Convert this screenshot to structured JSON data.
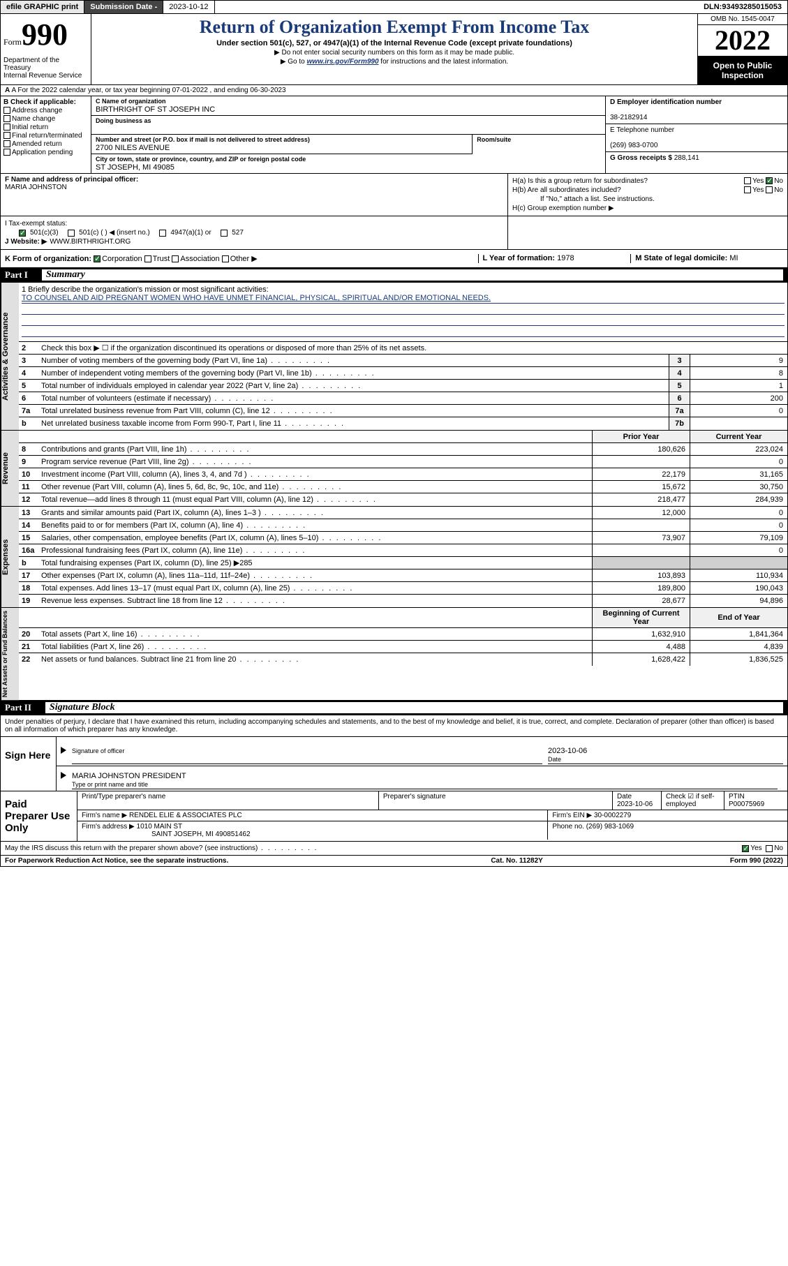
{
  "topbar": {
    "efile": "efile GRAPHIC print",
    "subdate_lbl": "Submission Date - ",
    "subdate_val": "2023-10-12",
    "dln_lbl": "DLN: ",
    "dln_val": "93493285015053"
  },
  "header": {
    "form_prefix": "Form",
    "form_num": "990",
    "dept": "Department of the Treasury\nInternal Revenue Service",
    "title": "Return of Organization Exempt From Income Tax",
    "sub": "Under section 501(c), 527, or 4947(a)(1) of the Internal Revenue Code (except private foundations)",
    "note1": "▶ Do not enter social security numbers on this form as it may be made public.",
    "note2a": "▶ Go to ",
    "note2link": "www.irs.gov/Form990",
    "note2b": " for instructions and the latest information.",
    "omb": "OMB No. 1545-0047",
    "year": "2022",
    "open": "Open to Public Inspection"
  },
  "rowA": "A For the 2022 calendar year, or tax year beginning 07-01-2022    , and ending 06-30-2023",
  "colB": {
    "hdr": "B Check if applicable:",
    "items": [
      "Address change",
      "Name change",
      "Initial return",
      "Final return/terminated",
      "Amended return",
      "Application pending"
    ]
  },
  "colC": {
    "name_lbl": "C Name of organization",
    "name": "BIRTHRIGHT OF ST JOSEPH INC",
    "dba_lbl": "Doing business as",
    "dba": "",
    "street_lbl": "Number and street (or P.O. box if mail is not delivered to street address)",
    "street": "2700 NILES AVENUE",
    "room_lbl": "Room/suite",
    "city_lbl": "City or town, state or province, country, and ZIP or foreign postal code",
    "city": "ST JOSEPH, MI  49085"
  },
  "colDE": {
    "d_lbl": "D Employer identification number",
    "d_val": "38-2182914",
    "e_lbl": "E Telephone number",
    "e_val": "(269) 983-0700",
    "g_lbl": "G Gross receipts $ ",
    "g_val": "288,141"
  },
  "fh": {
    "f_lbl": "F Name and address of principal officer:",
    "f_val": "MARIA JOHNSTON",
    "ha": "H(a)  Is this a group return for subordinates?",
    "hb": "H(b)  Are all subordinates included?",
    "hb_note": "If \"No,\" attach a list. See instructions.",
    "hc": "H(c)  Group exemption number ▶",
    "yes": "Yes",
    "no": "No"
  },
  "ij": {
    "i_lbl": "I    Tax-exempt status:",
    "i_501c3": "501(c)(3)",
    "i_501c": "501(c) (  ) ◀ (insert no.)",
    "i_4947": "4947(a)(1) or",
    "i_527": "527",
    "j_lbl": "J    Website: ▶",
    "j_val": "WWW.BIRTHRIGHT.ORG"
  },
  "klm": {
    "k_lbl": "K Form of organization:",
    "k_corp": "Corporation",
    "k_trust": "Trust",
    "k_assoc": "Association",
    "k_other": "Other ▶",
    "l_lbl": "L Year of formation: ",
    "l_val": "1978",
    "m_lbl": "M State of legal domicile: ",
    "m_val": "MI"
  },
  "part1": {
    "num": "Part I",
    "title": "Summary"
  },
  "mission": {
    "lbl": "1   Briefly describe the organization's mission or most significant activities:",
    "txt": "TO COUNSEL AND AID PREGNANT WOMEN WHO HAVE UNMET FINANCIAL, PHYSICAL, SPIRITUAL AND/OR EMOTIONAL NEEDS."
  },
  "gov": {
    "l2": "Check this box ▶ ☐  if the organization discontinued its operations or disposed of more than 25% of its net assets.",
    "l3": "Number of voting members of the governing body (Part VI, line 1a)",
    "l3v": "9",
    "l4": "Number of independent voting members of the governing body (Part VI, line 1b)",
    "l4v": "8",
    "l5": "Total number of individuals employed in calendar year 2022 (Part V, line 2a)",
    "l5v": "1",
    "l6": "Total number of volunteers (estimate if necessary)",
    "l6v": "200",
    "l7a": "Total unrelated business revenue from Part VIII, column (C), line 12",
    "l7av": "0",
    "l7b": "Net unrelated business taxable income from Form 990-T, Part I, line 11",
    "l7bv": ""
  },
  "revhdr": {
    "prior": "Prior Year",
    "curr": "Current Year"
  },
  "rev": [
    {
      "n": "8",
      "t": "Contributions and grants (Part VIII, line 1h)",
      "p": "180,626",
      "c": "223,024"
    },
    {
      "n": "9",
      "t": "Program service revenue (Part VIII, line 2g)",
      "p": "",
      "c": "0"
    },
    {
      "n": "10",
      "t": "Investment income (Part VIII, column (A), lines 3, 4, and 7d )",
      "p": "22,179",
      "c": "31,165"
    },
    {
      "n": "11",
      "t": "Other revenue (Part VIII, column (A), lines 5, 6d, 8c, 9c, 10c, and 11e)",
      "p": "15,672",
      "c": "30,750"
    },
    {
      "n": "12",
      "t": "Total revenue—add lines 8 through 11 (must equal Part VIII, column (A), line 12)",
      "p": "218,477",
      "c": "284,939"
    }
  ],
  "exp": [
    {
      "n": "13",
      "t": "Grants and similar amounts paid (Part IX, column (A), lines 1–3 )",
      "p": "12,000",
      "c": "0"
    },
    {
      "n": "14",
      "t": "Benefits paid to or for members (Part IX, column (A), line 4)",
      "p": "",
      "c": "0"
    },
    {
      "n": "15",
      "t": "Salaries, other compensation, employee benefits (Part IX, column (A), lines 5–10)",
      "p": "73,907",
      "c": "79,109"
    },
    {
      "n": "16a",
      "t": "Professional fundraising fees (Part IX, column (A), line 11e)",
      "p": "",
      "c": "0"
    },
    {
      "n": "b",
      "t": "Total fundraising expenses (Part IX, column (D), line 25) ▶285",
      "p": "—",
      "c": "—"
    },
    {
      "n": "17",
      "t": "Other expenses (Part IX, column (A), lines 11a–11d, 11f–24e)",
      "p": "103,893",
      "c": "110,934"
    },
    {
      "n": "18",
      "t": "Total expenses. Add lines 13–17 (must equal Part IX, column (A), line 25)",
      "p": "189,800",
      "c": "190,043"
    },
    {
      "n": "19",
      "t": "Revenue less expenses. Subtract line 18 from line 12",
      "p": "28,677",
      "c": "94,896"
    }
  ],
  "nethdr": {
    "beg": "Beginning of Current Year",
    "end": "End of Year"
  },
  "net": [
    {
      "n": "20",
      "t": "Total assets (Part X, line 16)",
      "p": "1,632,910",
      "c": "1,841,364"
    },
    {
      "n": "21",
      "t": "Total liabilities (Part X, line 26)",
      "p": "4,488",
      "c": "4,839"
    },
    {
      "n": "22",
      "t": "Net assets or fund balances. Subtract line 21 from line 20",
      "p": "1,628,422",
      "c": "1,836,525"
    }
  ],
  "part2": {
    "num": "Part II",
    "title": "Signature Block"
  },
  "sigdecl": "Under penalties of perjury, I declare that I have examined this return, including accompanying schedules and statements, and to the best of my knowledge and belief, it is true, correct, and complete. Declaration of preparer (other than officer) is based on all information of which preparer has any knowledge.",
  "sign": {
    "here": "Sign Here",
    "sig_lbl": "Signature of officer",
    "date_lbl": "Date",
    "date_val": "2023-10-06",
    "name": "MARIA JOHNSTON  PRESIDENT",
    "name_lbl": "Type or print name and title"
  },
  "prep": {
    "lbl": "Paid Preparer Use Only",
    "h1": "Print/Type preparer's name",
    "h2": "Preparer's signature",
    "h3": "Date",
    "h3v": "2023-10-06",
    "h4": "Check ☑ if self-employed",
    "h5": "PTIN",
    "h5v": "P00075969",
    "firm_lbl": "Firm's name    ▶",
    "firm": "RENDEL ELIE & ASSOCIATES PLC",
    "ein_lbl": "Firm's EIN ▶",
    "ein": "30-0002279",
    "addr_lbl": "Firm's address ▶",
    "addr1": "1010 MAIN ST",
    "addr2": "SAINT JOSEPH, MI  490851462",
    "phone_lbl": "Phone no. ",
    "phone": "(269) 983-1069"
  },
  "discuss": {
    "txt": "May the IRS discuss this return with the preparer shown above? (see instructions)",
    "yes": "Yes",
    "no": "No"
  },
  "footer": {
    "l": "For Paperwork Reduction Act Notice, see the separate instructions.",
    "m": "Cat. No. 11282Y",
    "r": "Form 990 (2022)"
  },
  "vtabs": {
    "gov": "Activities & Governance",
    "rev": "Revenue",
    "exp": "Expenses",
    "net": "Net Assets or Fund Balances"
  }
}
